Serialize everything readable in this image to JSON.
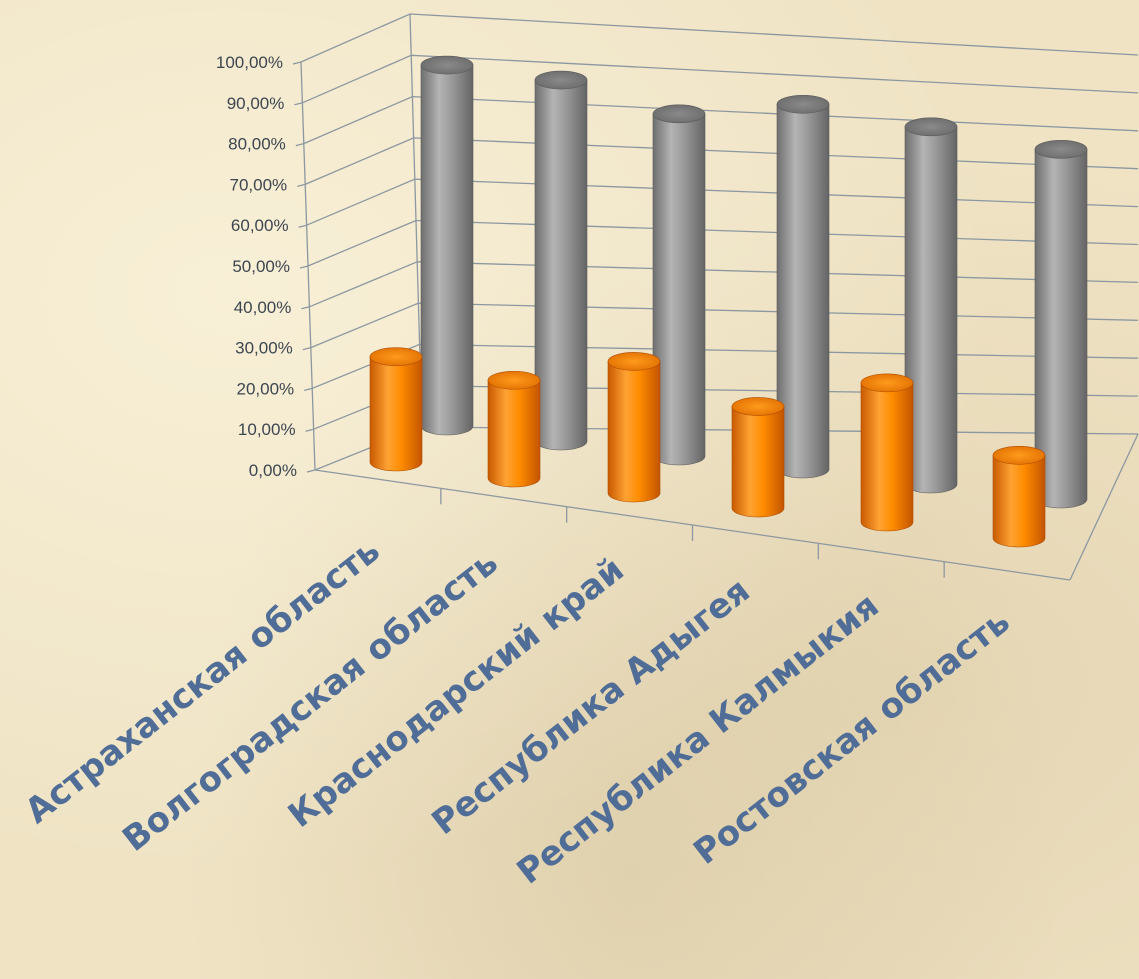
{
  "chart_data": {
    "type": "bar",
    "style": "3d-cylinder",
    "categories": [
      "Астраханская область",
      "Волгоградская область",
      "Краснодарский край",
      "Республика Адыгея",
      "Республика Калмыкия",
      "Ростовская область"
    ],
    "series": [
      {
        "values": [
          0.28,
          0.26,
          0.35,
          0.27,
          0.37,
          0.22
        ],
        "color": "#ff8c00"
      },
      {
        "values": [
          0.96,
          0.96,
          0.91,
          0.97,
          0.95,
          0.93
        ],
        "color": "#8f8f8f"
      }
    ],
    "y_ticks": [
      "0,00%",
      "10,00%",
      "20,00%",
      "30,00%",
      "40,00%",
      "50,00%",
      "60,00%",
      "70,00%",
      "80,00%",
      "90,00%",
      "100,00%"
    ],
    "ylim": [
      0,
      1
    ],
    "grid": true,
    "legend": "none"
  },
  "colors": {
    "background": "#efe3c4",
    "axis_text": "#3d4650",
    "category_text": "#4f6d96",
    "grid": "#8d97a1"
  }
}
